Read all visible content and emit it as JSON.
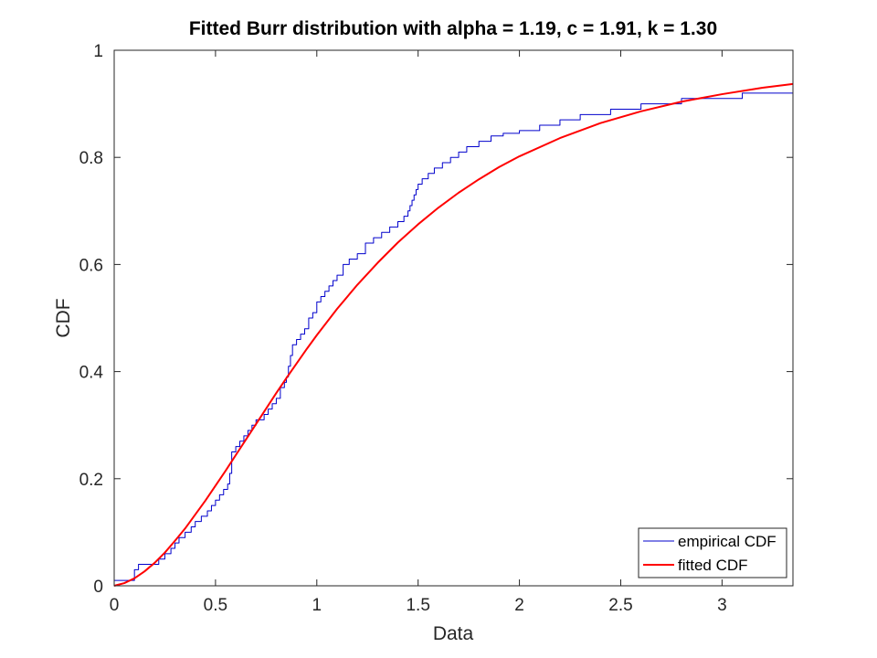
{
  "chart_data": {
    "type": "line",
    "title": "Fitted Burr distribution with alpha = 1.19, c = 1.91, k = 1.30",
    "xlabel": "Data",
    "ylabel": "CDF",
    "xlim": [
      0,
      3.35
    ],
    "ylim": [
      0,
      1
    ],
    "x_ticks": [
      "0",
      "0.5",
      "1",
      "1.5",
      "2",
      "2.5",
      "3"
    ],
    "y_ticks": [
      "0",
      "0.2",
      "0.4",
      "0.6",
      "0.8",
      "1"
    ],
    "x_tick_values": [
      0,
      0.5,
      1,
      1.5,
      2,
      2.5,
      3
    ],
    "y_tick_values": [
      0,
      0.2,
      0.4,
      0.6,
      0.8,
      1
    ],
    "grid": false,
    "legend_position": "bottom-right",
    "series": [
      {
        "name": "empirical CDF",
        "style": "stairs",
        "color": "#0000cc",
        "x": [
          0,
          0.1,
          0.12,
          0.22,
          0.25,
          0.28,
          0.3,
          0.32,
          0.35,
          0.38,
          0.4,
          0.43,
          0.46,
          0.48,
          0.5,
          0.52,
          0.54,
          0.56,
          0.57,
          0.58,
          0.6,
          0.62,
          0.64,
          0.66,
          0.68,
          0.7,
          0.74,
          0.76,
          0.78,
          0.8,
          0.82,
          0.84,
          0.85,
          0.86,
          0.87,
          0.88,
          0.9,
          0.92,
          0.94,
          0.96,
          0.98,
          1.0,
          1.02,
          1.04,
          1.06,
          1.08,
          1.1,
          1.13,
          1.16,
          1.2,
          1.24,
          1.28,
          1.32,
          1.36,
          1.4,
          1.43,
          1.45,
          1.46,
          1.47,
          1.48,
          1.49,
          1.5,
          1.52,
          1.55,
          1.58,
          1.62,
          1.66,
          1.7,
          1.74,
          1.8,
          1.86,
          1.92,
          2.0,
          2.1,
          2.2,
          2.3,
          2.45,
          2.6,
          2.8,
          3.1,
          3.35
        ],
        "y": [
          0.01,
          0.03,
          0.04,
          0.05,
          0.06,
          0.07,
          0.08,
          0.09,
          0.1,
          0.11,
          0.12,
          0.13,
          0.14,
          0.15,
          0.16,
          0.17,
          0.18,
          0.19,
          0.21,
          0.25,
          0.26,
          0.27,
          0.28,
          0.29,
          0.3,
          0.31,
          0.32,
          0.33,
          0.34,
          0.35,
          0.37,
          0.38,
          0.39,
          0.41,
          0.43,
          0.45,
          0.46,
          0.47,
          0.48,
          0.5,
          0.51,
          0.53,
          0.54,
          0.55,
          0.56,
          0.57,
          0.58,
          0.6,
          0.61,
          0.62,
          0.64,
          0.65,
          0.66,
          0.67,
          0.68,
          0.69,
          0.7,
          0.71,
          0.72,
          0.73,
          0.74,
          0.75,
          0.76,
          0.77,
          0.78,
          0.79,
          0.8,
          0.81,
          0.82,
          0.83,
          0.84,
          0.845,
          0.85,
          0.86,
          0.87,
          0.88,
          0.89,
          0.9,
          0.91,
          0.92,
          0.92
        ]
      },
      {
        "name": "fitted CDF",
        "style": "line",
        "color": "#ff0000",
        "x": [
          0,
          0.05,
          0.1,
          0.15,
          0.2,
          0.25,
          0.3,
          0.35,
          0.4,
          0.45,
          0.5,
          0.55,
          0.6,
          0.65,
          0.7,
          0.75,
          0.8,
          0.85,
          0.9,
          0.95,
          1.0,
          1.1,
          1.2,
          1.3,
          1.4,
          1.5,
          1.6,
          1.7,
          1.8,
          1.9,
          2.0,
          2.2,
          2.4,
          2.6,
          2.8,
          3.0,
          3.2,
          3.35
        ],
        "y": [
          0,
          0.005,
          0.014,
          0.027,
          0.043,
          0.062,
          0.084,
          0.107,
          0.133,
          0.159,
          0.187,
          0.215,
          0.244,
          0.273,
          0.302,
          0.331,
          0.36,
          0.388,
          0.415,
          0.442,
          0.468,
          0.517,
          0.562,
          0.603,
          0.641,
          0.675,
          0.706,
          0.734,
          0.759,
          0.782,
          0.802,
          0.836,
          0.864,
          0.886,
          0.904,
          0.918,
          0.93,
          0.937
        ]
      }
    ]
  }
}
